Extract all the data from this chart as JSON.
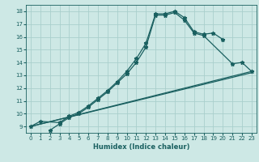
{
  "xlabel": "Humidex (Indice chaleur)",
  "background_color": "#cde8e5",
  "grid_color": "#aacfcc",
  "line_color": "#1a6060",
  "xlim": [
    -0.5,
    23.5
  ],
  "ylim": [
    8.5,
    18.5
  ],
  "xticks": [
    0,
    1,
    2,
    3,
    4,
    5,
    6,
    7,
    8,
    9,
    10,
    11,
    12,
    13,
    14,
    15,
    16,
    17,
    18,
    19,
    20,
    21,
    22,
    23
  ],
  "yticks": [
    9,
    10,
    11,
    12,
    13,
    14,
    15,
    16,
    17,
    18
  ],
  "line1_x": [
    0,
    1,
    3,
    4,
    5,
    6,
    7,
    8,
    9,
    10,
    11,
    12,
    13,
    14,
    15,
    16,
    17,
    18,
    19,
    20
  ],
  "line1_y": [
    9.0,
    9.4,
    9.3,
    9.8,
    10.1,
    10.6,
    11.2,
    11.8,
    12.5,
    13.3,
    14.3,
    15.5,
    17.8,
    17.8,
    18.0,
    17.5,
    16.4,
    16.2,
    16.3,
    15.8
  ],
  "line2_x": [
    2,
    3,
    4,
    5,
    6,
    7,
    8,
    9,
    10,
    11,
    12,
    13,
    14,
    15,
    16,
    17,
    18,
    21,
    22,
    23
  ],
  "line2_y": [
    8.7,
    9.2,
    9.7,
    10.0,
    10.5,
    11.1,
    11.7,
    12.4,
    13.1,
    14.0,
    15.2,
    17.7,
    17.7,
    17.9,
    17.3,
    16.3,
    16.1,
    13.9,
    14.0,
    13.3
  ],
  "line3_x": [
    0,
    23
  ],
  "line3_y": [
    9.0,
    13.3
  ],
  "line4_x": [
    0,
    23
  ],
  "line4_y": [
    9.0,
    13.2
  ]
}
